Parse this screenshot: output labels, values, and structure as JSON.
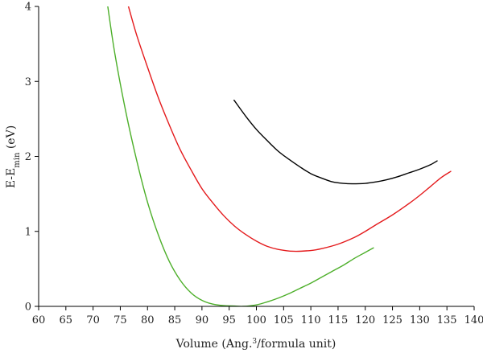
{
  "chart_data": {
    "type": "line",
    "title": "",
    "xlabel": {
      "main": "Volume (Ang.",
      "sup": "3",
      "rest": "/formula unit)"
    },
    "ylabel": {
      "main": "E-E",
      "sub": "min",
      "rest": " (eV)"
    },
    "xlim": [
      60,
      140
    ],
    "ylim": [
      0,
      4
    ],
    "xticks": [
      60,
      65,
      70,
      75,
      80,
      85,
      90,
      95,
      100,
      105,
      110,
      115,
      120,
      125,
      130,
      135,
      140
    ],
    "yticks": [
      0,
      1,
      2,
      3,
      4
    ],
    "grid": false,
    "legend": "none",
    "series": [
      {
        "color": "#000000",
        "x": [
          95.9,
          98,
          100,
          102,
          104,
          106,
          108,
          110,
          112,
          114,
          116,
          117.6,
          120,
          122,
          124,
          126,
          128,
          130,
          132,
          133.2
        ],
        "y": [
          2.75,
          2.54,
          2.36,
          2.21,
          2.07,
          1.96,
          1.86,
          1.77,
          1.71,
          1.66,
          1.64,
          1.635,
          1.64,
          1.66,
          1.69,
          1.73,
          1.78,
          1.83,
          1.89,
          1.94
        ]
      },
      {
        "color": "#e41a1c",
        "x": [
          76.5,
          78,
          80,
          82,
          84,
          86,
          88,
          90,
          92,
          94,
          96,
          98,
          100,
          102,
          104,
          106.8,
          110,
          112,
          115,
          118,
          120,
          122,
          125,
          128,
          130,
          132,
          134,
          135.7
        ],
        "y": [
          4.0,
          3.62,
          3.19,
          2.78,
          2.42,
          2.09,
          1.82,
          1.57,
          1.38,
          1.21,
          1.07,
          0.96,
          0.87,
          0.8,
          0.76,
          0.735,
          0.745,
          0.77,
          0.83,
          0.92,
          1.0,
          1.09,
          1.22,
          1.37,
          1.48,
          1.6,
          1.72,
          1.8
        ]
      },
      {
        "color": "#4daf2a",
        "x": [
          72.7,
          74,
          76,
          78,
          80,
          82,
          84,
          86,
          88,
          90,
          92,
          94,
          96,
          97.5,
          100,
          102,
          104,
          106,
          108,
          110,
          112,
          114,
          116,
          118,
          120,
          121.5
        ],
        "y": [
          4.0,
          3.37,
          2.6,
          1.95,
          1.39,
          0.95,
          0.6,
          0.35,
          0.18,
          0.08,
          0.03,
          0.01,
          0.005,
          0.0,
          0.02,
          0.06,
          0.11,
          0.17,
          0.24,
          0.31,
          0.39,
          0.47,
          0.55,
          0.64,
          0.72,
          0.78
        ]
      }
    ]
  }
}
